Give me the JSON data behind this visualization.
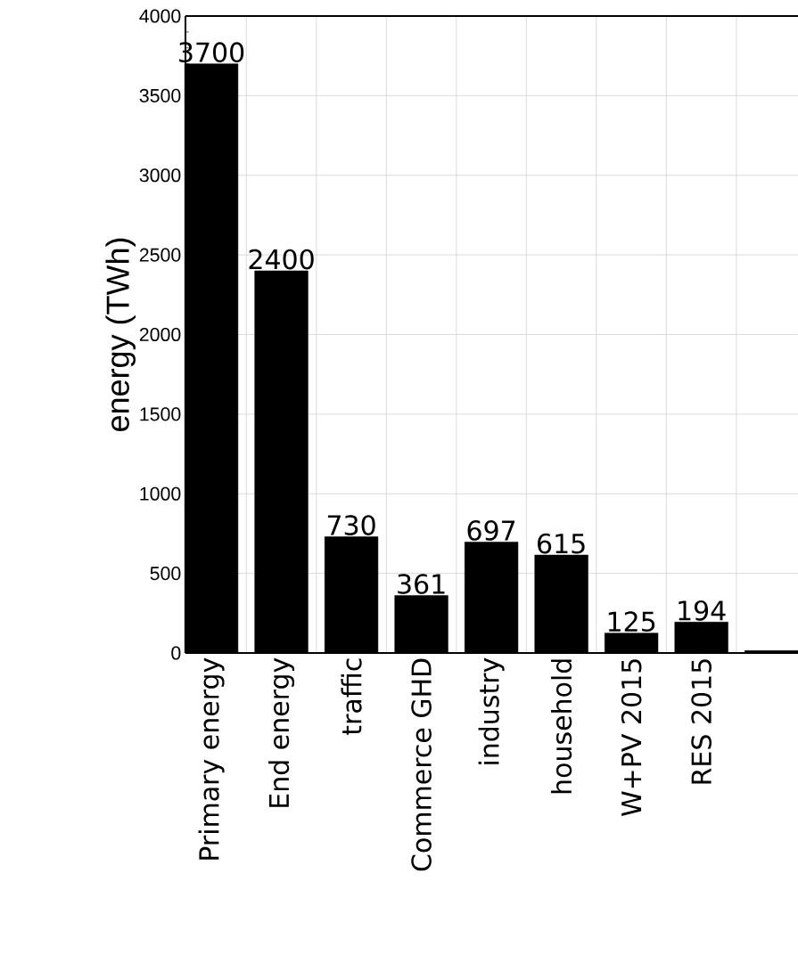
{
  "chart_data": {
    "type": "bar",
    "ylabel": "energy (TWh)",
    "categories": [
      "Primary energy",
      "End energy",
      "traffic",
      "Commerce GHD",
      "industry",
      "household",
      "W+PV 2015",
      "RES 2015",
      null
    ],
    "values": [
      3700,
      2400,
      730,
      361,
      697,
      615,
      125,
      194,
      15
    ],
    "value_labels": [
      "3700",
      "2400",
      "730",
      "361",
      "697",
      "615",
      "125",
      "194",
      null
    ],
    "color": "#000000",
    "ylim": [
      0,
      4000
    ],
    "yticks": [
      0,
      500,
      1000,
      1500,
      2000,
      2500,
      3000,
      3500,
      4000
    ],
    "grid": true
  }
}
